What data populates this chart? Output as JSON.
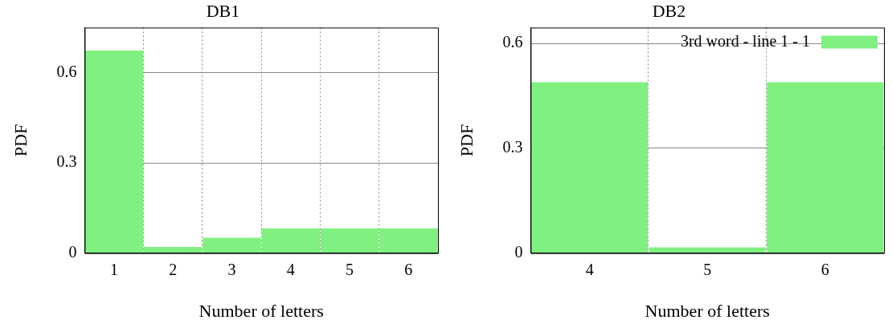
{
  "chart_data": [
    {
      "type": "bar",
      "title": "DB1",
      "xlabel": "Number of letters",
      "ylabel": "PDF",
      "categories": [
        "1",
        "2",
        "3",
        "4",
        "5",
        "6"
      ],
      "series": [
        {
          "color": "#80f080",
          "values": [
            0.674,
            0.02,
            0.051,
            0.082,
            0.082,
            0.082
          ]
        }
      ],
      "ylim": [
        0,
        0.75
      ],
      "yticks": [
        0,
        0.3,
        0.6
      ],
      "grid": true,
      "legend": false
    },
    {
      "type": "bar",
      "title": "DB2",
      "xlabel": "Number of letters",
      "ylabel": "PDF",
      "categories": [
        "4",
        "5",
        "6"
      ],
      "series": [
        {
          "name": "3rd word - line 1 - 1",
          "color": "#80f080",
          "values": [
            0.489,
            0.016,
            0.489
          ]
        }
      ],
      "ylim": [
        0,
        0.645
      ],
      "yticks": [
        0,
        0.3,
        0.6
      ],
      "grid": true,
      "legend": "top right"
    }
  ]
}
